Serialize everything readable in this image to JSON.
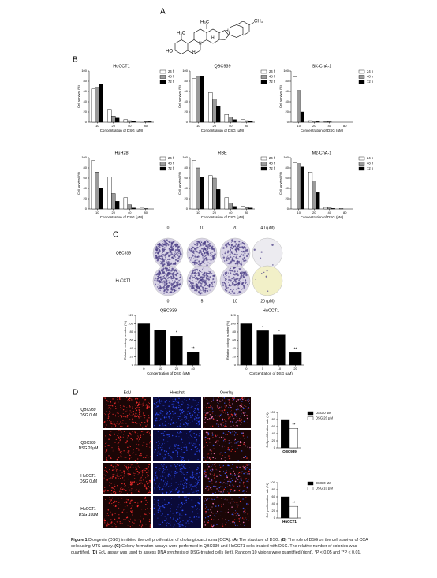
{
  "panels": [
    "A",
    "B",
    "C",
    "D"
  ],
  "structure": {
    "labels": [
      "H₃C",
      "CH₃",
      "H₃C",
      "HO",
      "H",
      "H",
      "H",
      "H"
    ]
  },
  "colony": {
    "rows": [
      "QBC939",
      "HuCCT1"
    ],
    "top_columns": [
      "0",
      "10",
      "20",
      "40 (μM)"
    ],
    "bottom_columns": [
      "0",
      "5",
      "10",
      "20 (μM)"
    ]
  },
  "edu": {
    "columns": [
      "EdU",
      "Hoechst",
      "Overlay"
    ],
    "rows": [
      [
        "QBC939",
        "DSG 0μM"
      ],
      [
        "QBC939",
        "DSG 20μM"
      ],
      [
        "HuCCT1",
        "DSG 0μM"
      ],
      [
        "HuCCT1",
        "DSG 10μM"
      ]
    ]
  },
  "chart_data": [
    {
      "type": "bar",
      "title": "HuCCT1",
      "x_label": "Concentration of DSG (μM)",
      "y_label": "Cell survival (%)",
      "categories": [
        "10",
        "20",
        "40",
        "80"
      ],
      "ylim": [
        0,
        100
      ],
      "yticks": [
        0,
        20,
        40,
        60,
        80,
        100
      ],
      "legend": "right",
      "series": [
        {
          "name": "24 h",
          "color": "#ffffff",
          "values": [
            65,
            25,
            5,
            2
          ]
        },
        {
          "name": "48 h",
          "color": "#9a9a9a",
          "values": [
            68,
            12,
            3,
            1
          ]
        },
        {
          "name": "72 h",
          "color": "#000000",
          "values": [
            75,
            8,
            2,
            1
          ]
        }
      ]
    },
    {
      "type": "bar",
      "title": "QBC939",
      "x_label": "Concentration of DSG (μM)",
      "y_label": "Cell survival (%)",
      "categories": [
        "10",
        "20",
        "40",
        "80"
      ],
      "ylim": [
        0,
        100
      ],
      "yticks": [
        0,
        20,
        40,
        60,
        80,
        100
      ],
      "legend": "right",
      "series": [
        {
          "name": "24 h",
          "color": "#ffffff",
          "values": [
            85,
            58,
            15,
            5
          ]
        },
        {
          "name": "48 h",
          "color": "#9a9a9a",
          "values": [
            88,
            45,
            10,
            3
          ]
        },
        {
          "name": "72 h",
          "color": "#000000",
          "values": [
            90,
            32,
            5,
            2
          ]
        }
      ]
    },
    {
      "type": "bar",
      "title": "SK-ChA-1",
      "x_label": "Concentration of DSG (μM)",
      "y_label": "Cell survival (%)",
      "categories": [
        "10",
        "20",
        "40",
        "80"
      ],
      "ylim": [
        0,
        100
      ],
      "yticks": [
        0,
        20,
        40,
        60,
        80,
        100
      ],
      "legend": "right",
      "series": [
        {
          "name": "24 h",
          "color": "#ffffff",
          "values": [
            88,
            3,
            1,
            0
          ]
        },
        {
          "name": "48 h",
          "color": "#9a9a9a",
          "values": [
            62,
            2,
            1,
            0
          ]
        },
        {
          "name": "72 h",
          "color": "#000000",
          "values": [
            20,
            1,
            0,
            0
          ]
        }
      ]
    },
    {
      "type": "bar",
      "title": "HuH28",
      "x_label": "Concentration of DSG (μM)",
      "y_label": "Cell survival (%)",
      "categories": [
        "10",
        "20",
        "40",
        "80"
      ],
      "ylim": [
        0,
        100
      ],
      "yticks": [
        0,
        20,
        40,
        60,
        80,
        100
      ],
      "legend": "right",
      "series": [
        {
          "name": "24 h",
          "color": "#ffffff",
          "values": [
            95,
            62,
            22,
            3
          ]
        },
        {
          "name": "48 h",
          "color": "#9a9a9a",
          "values": [
            72,
            30,
            8,
            1
          ]
        },
        {
          "name": "72 h",
          "color": "#000000",
          "values": [
            40,
            15,
            2,
            0
          ]
        }
      ]
    },
    {
      "type": "bar",
      "title": "RBE",
      "x_label": "Concentration of DSG (μM)",
      "y_label": "Cell survival (%)",
      "categories": [
        "10",
        "20",
        "40",
        "80"
      ],
      "ylim": [
        0,
        100
      ],
      "yticks": [
        0,
        20,
        40,
        60,
        80,
        100
      ],
      "legend": "right",
      "series": [
        {
          "name": "24 h",
          "color": "#ffffff",
          "values": [
            95,
            65,
            22,
            5
          ]
        },
        {
          "name": "48 h",
          "color": "#9a9a9a",
          "values": [
            80,
            60,
            12,
            3
          ]
        },
        {
          "name": "72 h",
          "color": "#000000",
          "values": [
            62,
            38,
            5,
            2
          ]
        }
      ]
    },
    {
      "type": "bar",
      "title": "Mz-ChA-1",
      "x_label": "Concentration of DSG (μM)",
      "y_label": "Cell survival (%)",
      "categories": [
        "10",
        "20",
        "40",
        "80"
      ],
      "ylim": [
        0,
        100
      ],
      "yticks": [
        0,
        20,
        40,
        60,
        80,
        100
      ],
      "legend": "right",
      "series": [
        {
          "name": "24 h",
          "color": "#ffffff",
          "values": [
            90,
            72,
            3,
            1
          ]
        },
        {
          "name": "48 h",
          "color": "#9a9a9a",
          "values": [
            88,
            55,
            2,
            0
          ]
        },
        {
          "name": "72 h",
          "color": "#000000",
          "values": [
            82,
            32,
            1,
            0
          ]
        }
      ]
    },
    {
      "type": "bar",
      "title": "QBC939",
      "x_label": "Concentration of DSG (μM)",
      "y_label": "Relative colony number (%)",
      "categories": [
        "0",
        "10",
        "20",
        "40"
      ],
      "ylim": [
        0,
        120
      ],
      "yticks": [
        0,
        20,
        40,
        60,
        80,
        100,
        120
      ],
      "color": "#000000",
      "values": [
        100,
        85,
        70,
        32
      ],
      "significance": [
        null,
        null,
        "*",
        "**"
      ]
    },
    {
      "type": "bar",
      "title": "HuCCT1",
      "x_label": "Concentration of DSG (μM)",
      "y_label": "Relative colony number (%)",
      "categories": [
        "0",
        "5",
        "10",
        "20"
      ],
      "ylim": [
        0,
        120
      ],
      "yticks": [
        0,
        20,
        40,
        60,
        80,
        100,
        120
      ],
      "color": "#000000",
      "values": [
        100,
        83,
        73,
        30
      ],
      "significance": [
        null,
        "*",
        "*",
        "**"
      ]
    },
    {
      "type": "bar",
      "x_label": "QBC939",
      "y_label": "Cell proliferation rate (%)",
      "categories": [
        null
      ],
      "ylim": [
        0,
        100
      ],
      "yticks": [
        0,
        20,
        40,
        60,
        80,
        100
      ],
      "legend": "right",
      "series": [
        {
          "name": "DSG 0 μM",
          "color": "#000000",
          "values": [
            80
          ],
          "significance": [
            null
          ]
        },
        {
          "name": "DSG 20 μM",
          "color": "#ffffff",
          "values": [
            55
          ],
          "significance": [
            "**"
          ]
        }
      ]
    },
    {
      "type": "bar",
      "x_label": "HuCCT1",
      "y_label": "Cell proliferation rate (%)",
      "categories": [
        null
      ],
      "ylim": [
        0,
        100
      ],
      "yticks": [
        0,
        20,
        40,
        60,
        80,
        100
      ],
      "legend": "right",
      "series": [
        {
          "name": "DSG 0 μM",
          "color": "#000000",
          "values": [
            60
          ],
          "significance": [
            null
          ]
        },
        {
          "name": "DSG 10 μM",
          "color": "#ffffff",
          "values": [
            33
          ],
          "significance": [
            "**"
          ]
        }
      ]
    }
  ],
  "caption": [
    {
      "text": "Figure 1",
      "bold": true
    },
    {
      "text": " Diosgenin (DSG) inhibited the cell proliferation of cholangiocarcinoma (CCA). ",
      "bold": false
    },
    {
      "text": "(A)",
      "bold": true
    },
    {
      "text": " The structure of DSG. ",
      "bold": false
    },
    {
      "text": "(B)",
      "bold": true
    },
    {
      "text": " The role of DSG on the cell survival of CCA cells using MTS assay. ",
      "bold": false
    },
    {
      "text": "(C)",
      "bold": true
    },
    {
      "text": " Colony-formation assays were performed in QBC939 and HuCCT1 cells treated with DSG. The relative number of colonies was quantified. ",
      "bold": false
    },
    {
      "text": "(D)",
      "bold": true
    },
    {
      "text": " EdU assay was used to assess DNA synthesis of DSG-treated cells (left). Random 10 visions were quantified (right). *P < 0.05 and **P < 0.01.",
      "bold": false
    }
  ]
}
